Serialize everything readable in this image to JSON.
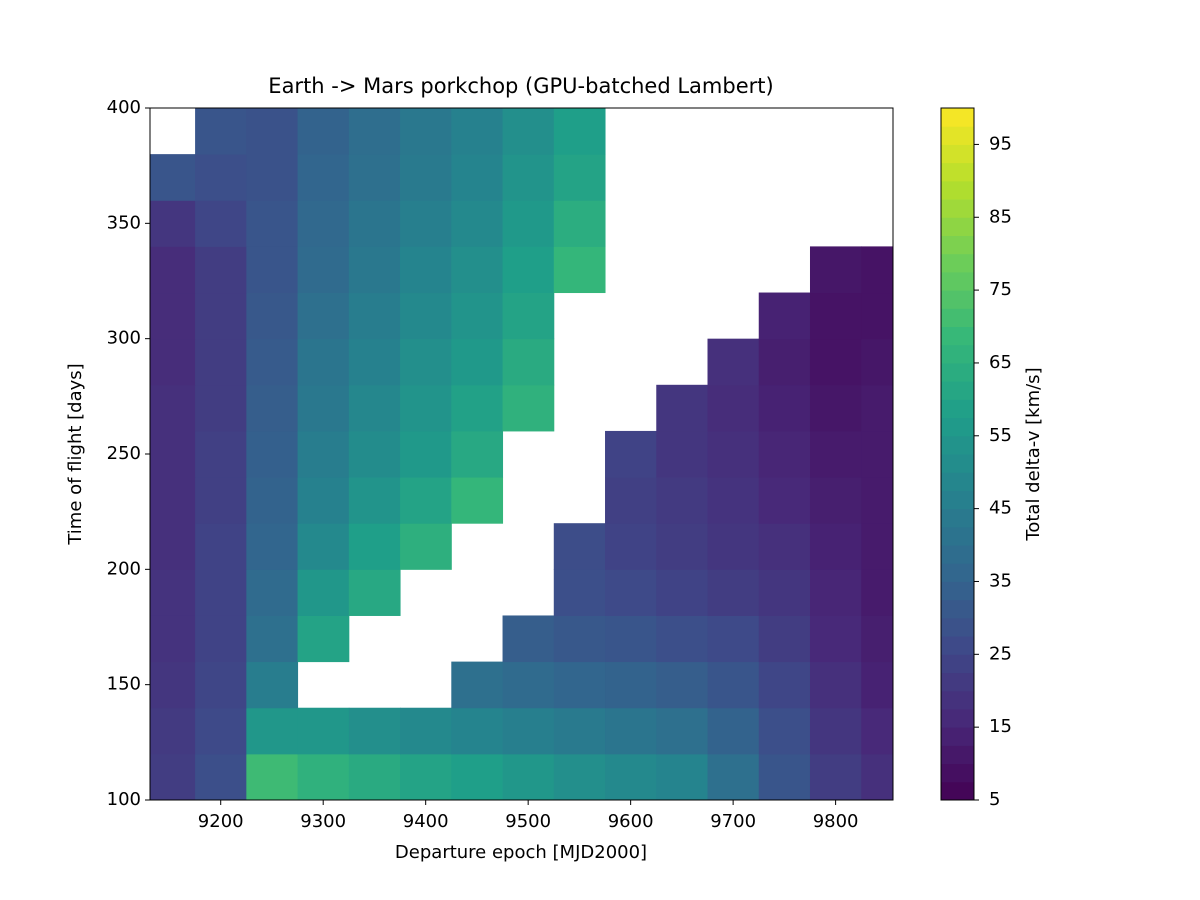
{
  "chart_data": {
    "type": "contour",
    "title": "Earth -> Mars porkchop (GPU-batched Lambert)",
    "x_label": "Departure epoch [MJD2000]",
    "y_label": "Time of flight [days]",
    "colorbar_label": "Total delta-v [km/s]",
    "colormap": "viridis",
    "xlim": [
      9131,
      9856
    ],
    "xticks": [
      9200,
      9300,
      9400,
      9500,
      9600,
      9700,
      9800
    ],
    "ylim": [
      100,
      400
    ],
    "yticks": [
      100,
      150,
      200,
      250,
      300,
      350,
      400
    ],
    "zlim": [
      5,
      100
    ],
    "zticks": [
      5,
      15,
      25,
      35,
      45,
      55,
      65,
      75,
      85,
      95
    ],
    "x": [
      9150,
      9200,
      9250,
      9300,
      9350,
      9400,
      9450,
      9500,
      9550,
      9600,
      9650,
      9700,
      9750,
      9800,
      9850
    ],
    "y": [
      110,
      130,
      150,
      170,
      190,
      210,
      230,
      250,
      270,
      290,
      310,
      330,
      350,
      370,
      390
    ],
    "z": [
      [
        22,
        28,
        70,
        66,
        63,
        60,
        58,
        55,
        52,
        50,
        48,
        40,
        30,
        22,
        18
      ],
      [
        21,
        26,
        55,
        55,
        52,
        50,
        48,
        46,
        44,
        42,
        40,
        35,
        28,
        20,
        16
      ],
      [
        20,
        25,
        45,
        null,
        null,
        null,
        40,
        38,
        36,
        35,
        33,
        30,
        25,
        18,
        14
      ],
      [
        19,
        24,
        40,
        60,
        null,
        null,
        null,
        33,
        31,
        30,
        28,
        26,
        22,
        16,
        13
      ],
      [
        19,
        24,
        38,
        55,
        62,
        null,
        null,
        null,
        28,
        26,
        24,
        22,
        20,
        15,
        12
      ],
      [
        18,
        24,
        36,
        50,
        58,
        65,
        null,
        null,
        27,
        24,
        22,
        20,
        18,
        14,
        12
      ],
      [
        18,
        23,
        35,
        47,
        54,
        60,
        68,
        null,
        null,
        23,
        21,
        19,
        16,
        13,
        12
      ],
      [
        18,
        23,
        34,
        45,
        51,
        56,
        62,
        null,
        null,
        24,
        20,
        18,
        15,
        12,
        12
      ],
      [
        18,
        22,
        33,
        43,
        49,
        54,
        59,
        66,
        null,
        null,
        20,
        17,
        14,
        11,
        12
      ],
      [
        17,
        22,
        32,
        42,
        47,
        52,
        56,
        63,
        null,
        null,
        null,
        18,
        13,
        10,
        11
      ],
      [
        17,
        22,
        31,
        40,
        45,
        50,
        54,
        60,
        null,
        null,
        null,
        null,
        14,
        10,
        10
      ],
      [
        17,
        22,
        30,
        38,
        43,
        48,
        52,
        58,
        68,
        null,
        null,
        null,
        null,
        11,
        10
      ],
      [
        20,
        25,
        30,
        37,
        42,
        46,
        50,
        56,
        64,
        null,
        null,
        null,
        null,
        null,
        null
      ],
      [
        30,
        28,
        29,
        36,
        40,
        44,
        48,
        54,
        60,
        null,
        null,
        null,
        null,
        null,
        null
      ],
      [
        null,
        30,
        29,
        35,
        39,
        43,
        47,
        52,
        58,
        null,
        null,
        null,
        null,
        null,
        null
      ]
    ]
  }
}
